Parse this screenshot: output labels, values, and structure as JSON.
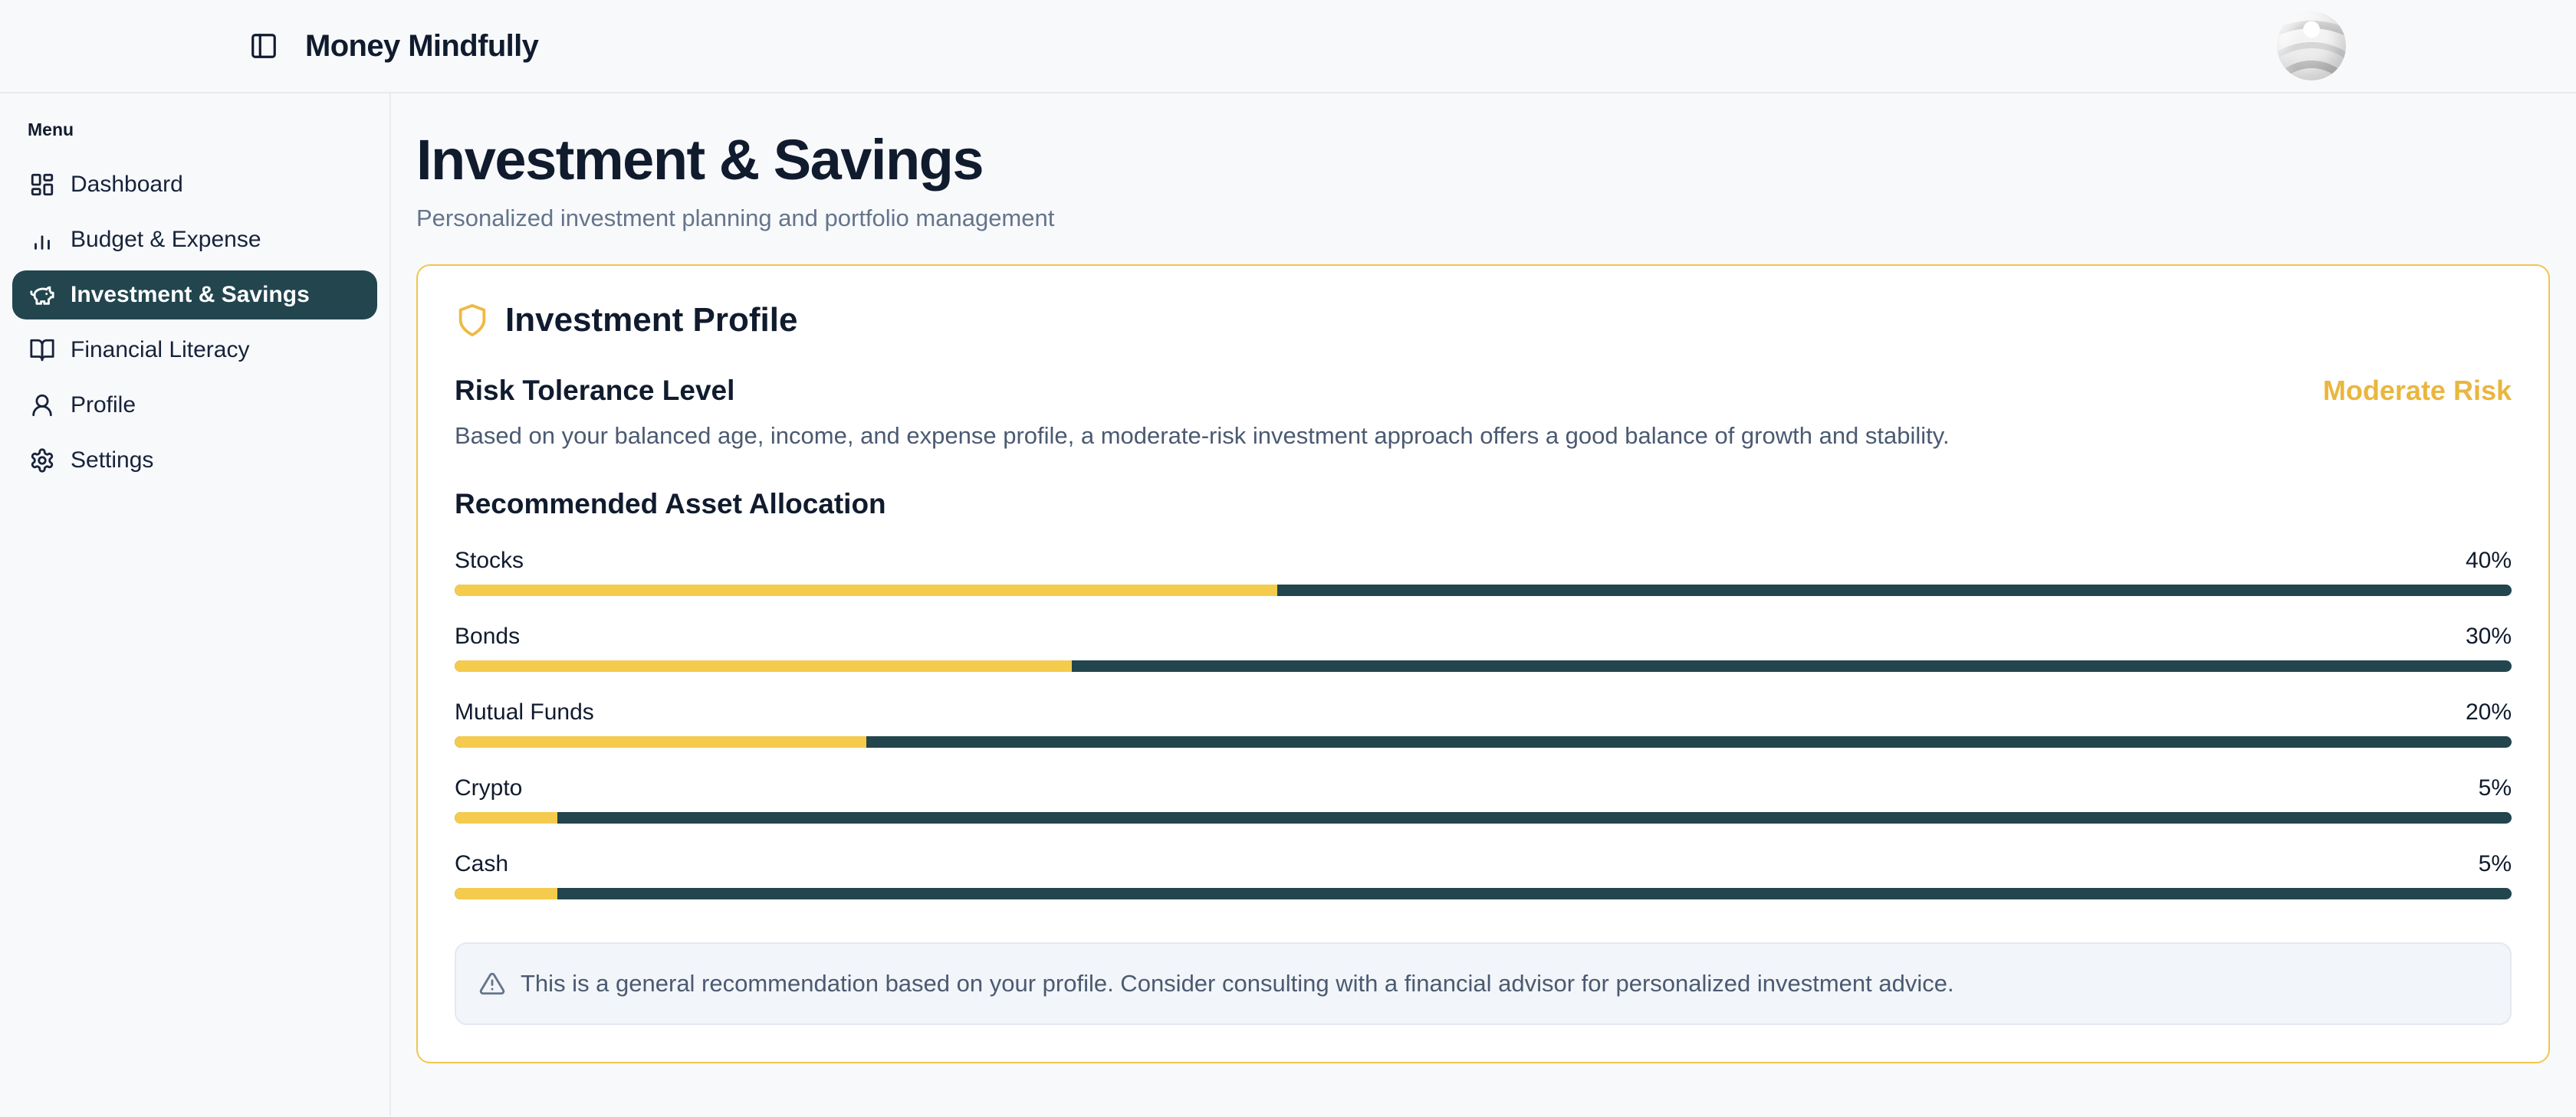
{
  "header": {
    "app_title": "Money Mindfully"
  },
  "sidebar": {
    "menu_label": "Menu",
    "items": [
      {
        "label": "Dashboard",
        "icon": "dashboard-icon",
        "active": false
      },
      {
        "label": "Budget & Expense",
        "icon": "bar-chart-icon",
        "active": false
      },
      {
        "label": "Investment & Savings",
        "icon": "piggy-bank-icon",
        "active": true
      },
      {
        "label": "Financial Literacy",
        "icon": "book-open-icon",
        "active": false
      },
      {
        "label": "Profile",
        "icon": "user-icon",
        "active": false
      },
      {
        "label": "Settings",
        "icon": "gear-icon",
        "active": false
      }
    ]
  },
  "page": {
    "title": "Investment & Savings",
    "subtitle": "Personalized investment planning and portfolio management"
  },
  "card": {
    "title": "Investment Profile",
    "risk_heading": "Risk Tolerance Level",
    "risk_level": "Moderate Risk",
    "risk_description": "Based on your balanced age, income, and expense profile, a moderate-risk investment approach offers a good balance of growth and stability.",
    "allocation_heading": "Recommended Asset Allocation",
    "allocation": [
      {
        "label": "Stocks",
        "percent": 40,
        "percent_label": "40%"
      },
      {
        "label": "Bonds",
        "percent": 30,
        "percent_label": "30%"
      },
      {
        "label": "Mutual Funds",
        "percent": 20,
        "percent_label": "20%"
      },
      {
        "label": "Crypto",
        "percent": 5,
        "percent_label": "5%"
      },
      {
        "label": "Cash",
        "percent": 5,
        "percent_label": "5%"
      }
    ],
    "note": "This is a general recommendation based on your profile. Consider consulting with a financial advisor for personalized investment advice."
  },
  "chart_data": {
    "type": "bar",
    "title": "Recommended Asset Allocation",
    "categories": [
      "Stocks",
      "Bonds",
      "Mutual Funds",
      "Crypto",
      "Cash"
    ],
    "values": [
      40,
      30,
      20,
      5,
      5
    ],
    "unit": "%"
  },
  "colors": {
    "accent_gold_text": "#e9b63e",
    "gold_border": "#f0c64f",
    "bar_fill": "#f5cb4d",
    "bar_track": "#22454e",
    "active_item_bg": "#22454e",
    "text_dark": "#101b2e",
    "text_gray": "#4b5a71",
    "page_bg": "#f8f9fb"
  }
}
